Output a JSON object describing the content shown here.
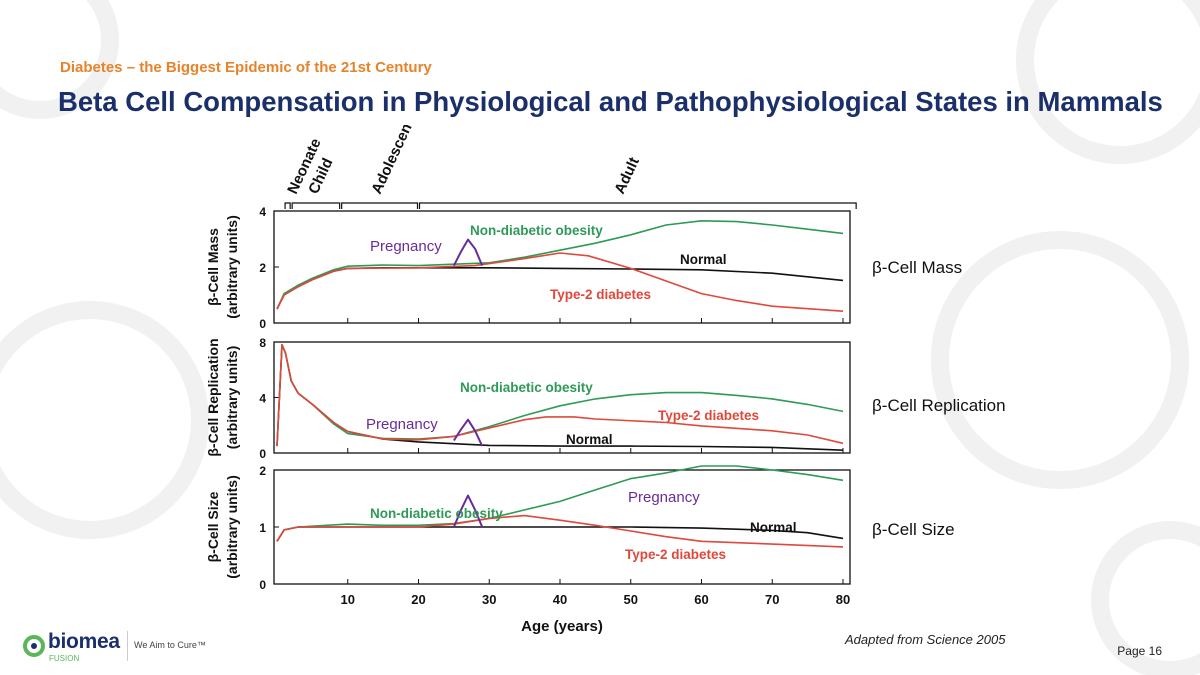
{
  "header": {
    "subtitle": "Diabetes – the Biggest Epidemic of the 21st Century",
    "title": "Beta Cell Compensation in Physiological and Pathophysiological States in Mammals"
  },
  "footer": {
    "source": "Adapted from Science 2005",
    "page": "Page 16",
    "logo_word": "biomea",
    "logo_sub": "FUSION",
    "tagline": "We Aim to Cure™"
  },
  "colors": {
    "title": "#1B2F6B",
    "subtitle": "#E8832A",
    "normal": "#111111",
    "obesity": "#2E9A57",
    "diabetes": "#E0483B",
    "pregnancy": "#6A2B9A",
    "logo_accent": "#5BB65A"
  },
  "chart_data": {
    "type": "line",
    "xlabel": "Age (years)",
    "xlim": [
      0,
      80
    ],
    "x_ticks": [
      10,
      20,
      30,
      40,
      50,
      60,
      70,
      80
    ],
    "life_stages": [
      {
        "label": "Neonate",
        "x_range": [
          1,
          2
        ]
      },
      {
        "label": "Child",
        "x_range": [
          2,
          9
        ]
      },
      {
        "label": "Adolescent",
        "x_range": [
          9,
          20
        ]
      },
      {
        "label": "Adult",
        "x_range": [
          20,
          82
        ]
      }
    ],
    "panels": [
      {
        "side_label": "β-Cell Mass",
        "ylabel": "β-Cell Mass\n(arbitrary units)",
        "ylim": [
          0,
          4
        ],
        "y_ticks": [
          0,
          2,
          4
        ],
        "series": [
          {
            "name": "Normal",
            "color": "#111111",
            "points": [
              [
                0,
                0.5
              ],
              [
                1,
                1.0
              ],
              [
                3,
                1.3
              ],
              [
                5,
                1.55
              ],
              [
                8,
                1.85
              ],
              [
                10,
                1.95
              ],
              [
                15,
                1.97
              ],
              [
                20,
                1.97
              ],
              [
                30,
                1.97
              ],
              [
                40,
                1.95
              ],
              [
                50,
                1.93
              ],
              [
                60,
                1.9
              ],
              [
                70,
                1.78
              ],
              [
                80,
                1.52
              ]
            ]
          },
          {
            "name": "Non-diabetic obesity",
            "color": "#2E9A57",
            "points": [
              [
                0,
                0.5
              ],
              [
                1,
                1.05
              ],
              [
                3,
                1.35
              ],
              [
                5,
                1.6
              ],
              [
                8,
                1.9
              ],
              [
                10,
                2.03
              ],
              [
                15,
                2.07
              ],
              [
                20,
                2.05
              ],
              [
                30,
                2.15
              ],
              [
                35,
                2.35
              ],
              [
                40,
                2.6
              ],
              [
                45,
                2.85
              ],
              [
                50,
                3.15
              ],
              [
                55,
                3.5
              ],
              [
                60,
                3.65
              ],
              [
                65,
                3.62
              ],
              [
                70,
                3.5
              ],
              [
                75,
                3.35
              ],
              [
                80,
                3.2
              ]
            ]
          },
          {
            "name": "Type-2 diabetes",
            "color": "#E0483B",
            "points": [
              [
                0,
                0.5
              ],
              [
                1,
                1.0
              ],
              [
                3,
                1.3
              ],
              [
                5,
                1.55
              ],
              [
                8,
                1.85
              ],
              [
                10,
                1.95
              ],
              [
                20,
                1.97
              ],
              [
                28,
                2.05
              ],
              [
                35,
                2.3
              ],
              [
                40,
                2.5
              ],
              [
                44,
                2.4
              ],
              [
                50,
                1.95
              ],
              [
                55,
                1.5
              ],
              [
                60,
                1.05
              ],
              [
                65,
                0.8
              ],
              [
                70,
                0.6
              ],
              [
                80,
                0.42
              ]
            ]
          },
          {
            "name": "Pregnancy",
            "color": "#6A2B9A",
            "points": [
              [
                25,
                2.05
              ],
              [
                26,
                2.55
              ],
              [
                27,
                2.98
              ],
              [
                28,
                2.65
              ],
              [
                29,
                2.05
              ]
            ]
          }
        ],
        "annotations": [
          "Non-diabetic obesity",
          "Pregnancy",
          "Normal",
          "Type-2 diabetes"
        ]
      },
      {
        "side_label": "β-Cell Replication",
        "ylabel": "β-Cell Replication\n(arbitrary units)",
        "ylim": [
          0,
          8
        ],
        "y_ticks": [
          0,
          4,
          8
        ],
        "series": [
          {
            "name": "Normal",
            "color": "#111111",
            "points": [
              [
                0,
                0.5
              ],
              [
                0.7,
                7.8
              ],
              [
                1.2,
                7.2
              ],
              [
                2,
                5.2
              ],
              [
                3,
                4.3
              ],
              [
                5,
                3.5
              ],
              [
                8,
                2.2
              ],
              [
                10,
                1.55
              ],
              [
                15,
                1.0
              ],
              [
                20,
                0.8
              ],
              [
                30,
                0.55
              ],
              [
                40,
                0.5
              ],
              [
                50,
                0.5
              ],
              [
                60,
                0.47
              ],
              [
                70,
                0.4
              ],
              [
                80,
                0.2
              ]
            ]
          },
          {
            "name": "Non-diabetic obesity",
            "color": "#2E9A57",
            "points": [
              [
                0,
                0.5
              ],
              [
                0.7,
                7.8
              ],
              [
                1.2,
                7.2
              ],
              [
                2,
                5.2
              ],
              [
                3,
                4.3
              ],
              [
                5,
                3.5
              ],
              [
                8,
                2.1
              ],
              [
                10,
                1.4
              ],
              [
                15,
                1.05
              ],
              [
                20,
                1.0
              ],
              [
                25,
                1.2
              ],
              [
                30,
                1.9
              ],
              [
                35,
                2.7
              ],
              [
                40,
                3.4
              ],
              [
                45,
                3.9
              ],
              [
                50,
                4.2
              ],
              [
                55,
                4.35
              ],
              [
                60,
                4.35
              ],
              [
                65,
                4.15
              ],
              [
                70,
                3.9
              ],
              [
                75,
                3.5
              ],
              [
                80,
                3.0
              ]
            ]
          },
          {
            "name": "Type-2 diabetes",
            "color": "#E0483B",
            "points": [
              [
                0,
                0.5
              ],
              [
                0.7,
                7.8
              ],
              [
                1.2,
                7.2
              ],
              [
                2,
                5.2
              ],
              [
                3,
                4.3
              ],
              [
                5,
                3.5
              ],
              [
                8,
                2.2
              ],
              [
                10,
                1.55
              ],
              [
                15,
                1.0
              ],
              [
                20,
                0.95
              ],
              [
                25,
                1.2
              ],
              [
                30,
                1.8
              ],
              [
                35,
                2.4
              ],
              [
                38,
                2.6
              ],
              [
                42,
                2.6
              ],
              [
                45,
                2.45
              ],
              [
                55,
                2.2
              ],
              [
                60,
                1.95
              ],
              [
                70,
                1.6
              ],
              [
                75,
                1.3
              ],
              [
                80,
                0.7
              ]
            ]
          },
          {
            "name": "Pregnancy",
            "color": "#6A2B9A",
            "points": [
              [
                25,
                0.9
              ],
              [
                26,
                1.7
              ],
              [
                27,
                2.4
              ],
              [
                28,
                1.6
              ],
              [
                29,
                0.5
              ]
            ]
          }
        ],
        "annotations": [
          "Non-diabetic obesity",
          "Type-2 diabetes",
          "Pregnancy",
          "Normal"
        ]
      },
      {
        "side_label": "β-Cell Size",
        "ylabel": "β-Cell Size\n(arbitrary units)",
        "ylim": [
          0,
          2
        ],
        "y_ticks": [
          0,
          1,
          2
        ],
        "series": [
          {
            "name": "Normal",
            "color": "#111111",
            "points": [
              [
                0,
                0.75
              ],
              [
                1,
                0.95
              ],
              [
                3,
                1.0
              ],
              [
                10,
                1.0
              ],
              [
                20,
                1.0
              ],
              [
                30,
                1.0
              ],
              [
                40,
                1.0
              ],
              [
                50,
                1.0
              ],
              [
                60,
                0.98
              ],
              [
                70,
                0.94
              ],
              [
                75,
                0.9
              ],
              [
                80,
                0.8
              ]
            ]
          },
          {
            "name": "Non-diabetic obesity",
            "color": "#2E9A57",
            "points": [
              [
                0,
                0.75
              ],
              [
                1,
                0.95
              ],
              [
                3,
                1.0
              ],
              [
                10,
                1.05
              ],
              [
                15,
                1.03
              ],
              [
                20,
                1.03
              ],
              [
                25,
                1.06
              ],
              [
                30,
                1.15
              ],
              [
                35,
                1.3
              ],
              [
                40,
                1.45
              ],
              [
                45,
                1.65
              ],
              [
                50,
                1.85
              ],
              [
                55,
                1.95
              ],
              [
                60,
                2.07
              ],
              [
                65,
                2.07
              ],
              [
                70,
                2.0
              ],
              [
                75,
                1.92
              ],
              [
                80,
                1.82
              ]
            ]
          },
          {
            "name": "Type-2 diabetes",
            "color": "#E0483B",
            "points": [
              [
                0,
                0.75
              ],
              [
                1,
                0.95
              ],
              [
                3,
                1.0
              ],
              [
                10,
                1.0
              ],
              [
                20,
                1.0
              ],
              [
                25,
                1.05
              ],
              [
                30,
                1.15
              ],
              [
                35,
                1.2
              ],
              [
                40,
                1.12
              ],
              [
                45,
                1.03
              ],
              [
                50,
                0.93
              ],
              [
                55,
                0.83
              ],
              [
                60,
                0.75
              ],
              [
                70,
                0.7
              ],
              [
                80,
                0.65
              ]
            ]
          },
          {
            "name": "Pregnancy",
            "color": "#6A2B9A",
            "points": [
              [
                25,
                1.0
              ],
              [
                26,
                1.3
              ],
              [
                27,
                1.55
              ],
              [
                28,
                1.3
              ],
              [
                29,
                1.0
              ]
            ]
          }
        ],
        "annotations": [
          "Pregnancy",
          "Non-diabetic obesity",
          "Normal",
          "Type-2 diabetes"
        ]
      }
    ]
  }
}
